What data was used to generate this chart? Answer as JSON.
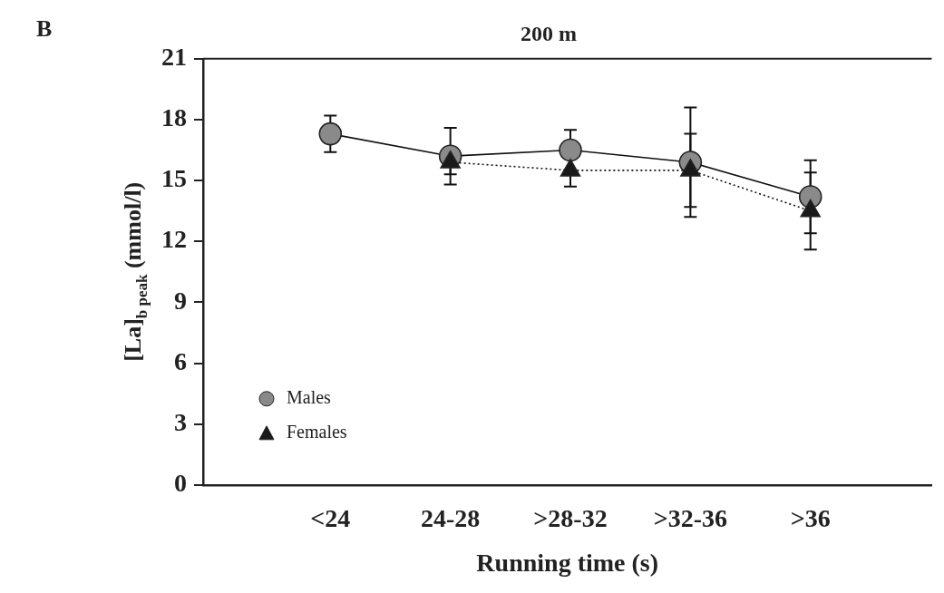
{
  "chart_data": {
    "type": "line",
    "title": "200 m",
    "xlabel": "Running time (s)",
    "ylabel": "[La]$_{b peak}$ (mmol/l)",
    "annotations": [
      "B"
    ],
    "categories": [
      "<24",
      "24-28",
      ">28-32",
      ">32-36",
      ">36"
    ],
    "ylim": [
      0,
      21
    ],
    "yticks": [
      0,
      3,
      6,
      9,
      12,
      15,
      18,
      21
    ],
    "grid": false,
    "legend": "bottom left",
    "series": [
      {
        "name": "Males",
        "color": "#8a8a8a",
        "marker": "circle",
        "line_style": "solid",
        "values": [
          17.3,
          16.2,
          16.5,
          15.9,
          14.2
        ],
        "errors": [
          0.9,
          1.4,
          1.0,
          2.7,
          1.8
        ]
      },
      {
        "name": "Females",
        "color": "#1a1a1a",
        "marker": "triangle",
        "line_style": "dotted",
        "values": [
          null,
          15.9,
          15.5,
          15.5,
          13.5
        ],
        "errors": [
          null,
          0.6,
          0.8,
          1.8,
          1.9
        ]
      }
    ]
  }
}
